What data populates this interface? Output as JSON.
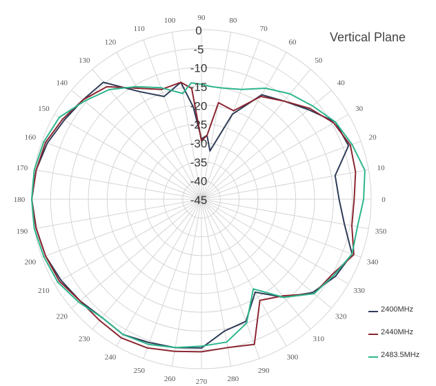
{
  "chart_data": {
    "type": "polar-line",
    "title": "Vertical Plane",
    "radial_axis": {
      "min": -45,
      "max": 0,
      "step": 5,
      "tick_labels": [
        "0",
        "-5",
        "-10",
        "-15",
        "-20",
        "-25",
        "-30",
        "-35",
        "-40",
        "-45"
      ]
    },
    "angular_axis": {
      "step": 10,
      "tick_labels": [
        "0",
        "10",
        "20",
        "30",
        "40",
        "50",
        "60",
        "70",
        "80",
        "90",
        "100",
        "110",
        "120",
        "130",
        "140",
        "150",
        "160",
        "170",
        "180",
        "190",
        "200",
        "210",
        "220",
        "230",
        "240",
        "250",
        "260",
        "270",
        "280",
        "290",
        "300",
        "310",
        "320",
        "330",
        "340",
        "350"
      ]
    },
    "grid": true,
    "legend_position": "bottom-right",
    "angles": [
      0,
      10,
      20,
      30,
      40,
      50,
      60,
      70,
      80,
      85,
      90,
      95,
      100,
      110,
      120,
      130,
      140,
      150,
      160,
      170,
      180,
      190,
      200,
      210,
      220,
      230,
      240,
      250,
      260,
      270,
      280,
      290,
      300,
      310,
      320,
      330,
      340,
      350
    ],
    "series": [
      {
        "name": "2400MHz",
        "color": "#2e3b58",
        "values": [
          -8.5,
          -9,
          -3.5,
          -4,
          -8,
          -11,
          -13,
          -21,
          -32,
          -28,
          -29,
          -20.5,
          -13.5,
          -16,
          -12,
          -4.5,
          -4,
          -3,
          -1.5,
          -0.5,
          0,
          -0.5,
          -1,
          -2,
          -3,
          -4,
          -3.5,
          -4.5,
          -5,
          -5.5,
          -9.5,
          -10.5,
          -16.5,
          -11,
          -6.5,
          -4,
          -2.5,
          -6.5
        ]
      },
      {
        "name": "2440MHz",
        "color": "#8b2530",
        "values": [
          -4.5,
          -3.5,
          -3,
          -4.5,
          -7.5,
          -11,
          -13.5,
          -20,
          -19,
          -28,
          -29.5,
          -15.5,
          -13.5,
          -14,
          -11,
          -6,
          -4,
          -2.5,
          -1,
          -0.5,
          0,
          -0.5,
          -1,
          -1.5,
          -3,
          -3,
          -2.5,
          -3,
          -4,
          -4.5,
          -5,
          -4,
          -14,
          -11.5,
          -6,
          -5,
          -2,
          -4.5
        ]
      },
      {
        "name": "2483.5MHz",
        "color": "#2bb58c",
        "values": [
          -2,
          -1,
          -2.5,
          -4,
          -6.5,
          -8.5,
          -11,
          -14,
          -15,
          -15,
          -14.5,
          -14,
          -16.5,
          -13.5,
          -10.5,
          -7,
          -4.5,
          -1.5,
          -0.5,
          0,
          0,
          0,
          -0.5,
          -1,
          -2.5,
          -4,
          -3.5,
          -4,
          -5,
          -6,
          -6.5,
          -10,
          -17.5,
          -11,
          -6,
          -4.5,
          -2.5,
          -3
        ]
      }
    ]
  }
}
